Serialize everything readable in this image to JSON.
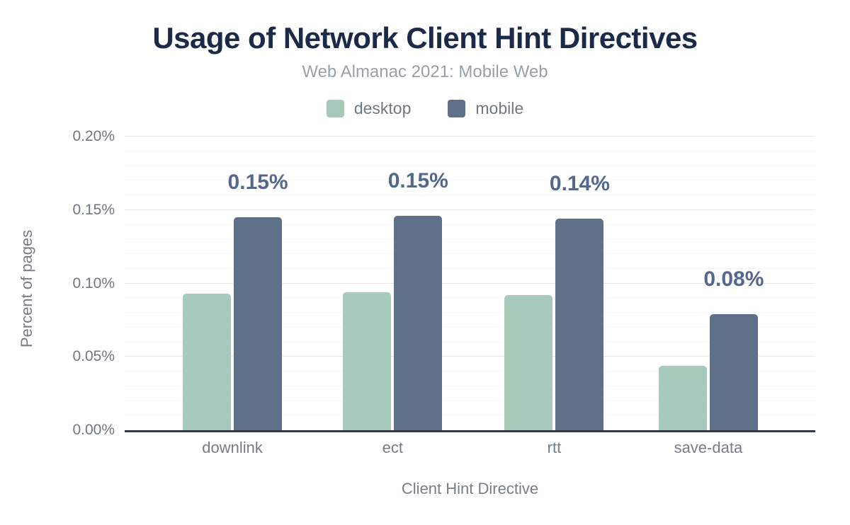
{
  "header": {
    "title": "Usage of Network Client Hint Directives",
    "subtitle": "Web Almanac 2021: Mobile Web"
  },
  "legend": {
    "items": [
      {
        "label": "desktop",
        "color": "#a8cabb"
      },
      {
        "label": "mobile",
        "color": "#5f7089"
      }
    ]
  },
  "axes": {
    "y_title": "Percent of pages",
    "x_title": "Client Hint Directive",
    "y_ticks": [
      "0.20%",
      "0.15%",
      "0.10%",
      "0.05%",
      "0.00%"
    ]
  },
  "chart_data": {
    "type": "bar",
    "title": "Usage of Network Client Hint Directives",
    "subtitle": "Web Almanac 2021: Mobile Web",
    "categories": [
      "downlink",
      "ect",
      "rtt",
      "save-data"
    ],
    "series": [
      {
        "name": "desktop",
        "color": "#a8cabb",
        "values": [
          0.093,
          0.094,
          0.092,
          0.044
        ]
      },
      {
        "name": "mobile",
        "color": "#5f7089",
        "values": [
          0.145,
          0.146,
          0.144,
          0.079
        ],
        "labels": [
          "0.15%",
          "0.15%",
          "0.14%",
          "0.08%"
        ]
      }
    ],
    "xlabel": "Client Hint Directive",
    "ylabel": "Percent of pages",
    "ylim": [
      0,
      0.2
    ],
    "y_tick_step": 0.05,
    "minor_grid_step": 0.01,
    "value_unit": "%",
    "legend_position": "top",
    "grid": true,
    "colors": {
      "title": "#1b2a49",
      "subtitle": "#98a0a7",
      "axis_text": "#757d88",
      "data_label": "#54678c",
      "axis_line": "#333a45",
      "grid_major": "#e7e7e7",
      "grid_minor": "#f4f4f4"
    }
  }
}
